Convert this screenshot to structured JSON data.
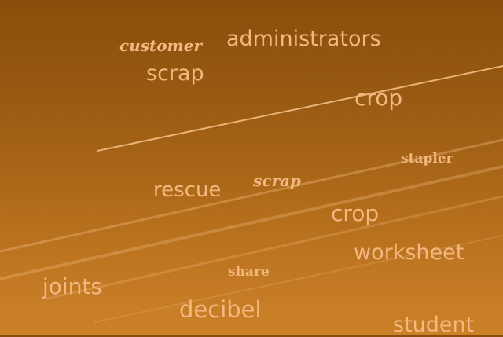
{
  "words": {
    "customer": "customer",
    "administrators": "administrators",
    "scrap_top": "scrap",
    "crop_top": "crop",
    "stapler": "stapler",
    "scrap_script": "scrap",
    "rescue": "rescue",
    "crop_mid": "crop",
    "worksheet": "worksheet",
    "share": "share",
    "joints": "joints",
    "decibel": "decibel",
    "student": "student"
  },
  "colors": {
    "text": "#f2b880",
    "sky_top": "#8a4e0c",
    "sky_bottom": "#cc8128",
    "contrail": "#f6c48a"
  }
}
